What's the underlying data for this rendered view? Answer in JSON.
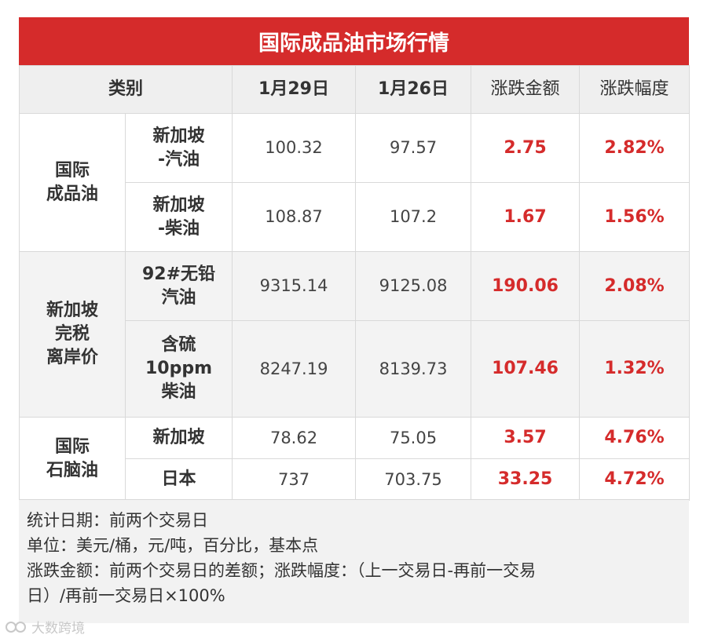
{
  "title": "国际成品油市场行情",
  "header": {
    "category": "类别",
    "date1": "1月29日",
    "date2": "1月26日",
    "change_amount": "涨跌金额",
    "change_pct": "涨跌幅度"
  },
  "groups": [
    {
      "label_lines": [
        "国际",
        "成品油"
      ],
      "rows": [
        {
          "item_lines": [
            "新加坡",
            "-汽油"
          ],
          "v1": "100.32",
          "v2": "97.57",
          "chg": "2.75",
          "pct": "2.82%"
        },
        {
          "item_lines": [
            "新加坡",
            "-柴油"
          ],
          "v1": "108.87",
          "v2": "107.2",
          "chg": "1.67",
          "pct": "1.56%"
        }
      ]
    },
    {
      "label_lines": [
        "新加坡",
        "完税",
        "离岸价"
      ],
      "rows": [
        {
          "item_lines": [
            "92#无铅",
            "汽油"
          ],
          "v1": "9315.14",
          "v2": "9125.08",
          "chg": "190.06",
          "pct": "2.08%"
        },
        {
          "item_lines": [
            "含硫",
            "10ppm",
            "柴油"
          ],
          "v1": "8247.19",
          "v2": "8139.73",
          "chg": "107.46",
          "pct": "1.32%"
        }
      ]
    },
    {
      "label_lines": [
        "国际",
        "石脑油"
      ],
      "rows": [
        {
          "item_lines": [
            "新加坡"
          ],
          "v1": "78.62",
          "v2": "75.05",
          "chg": "3.57",
          "pct": "4.76%"
        },
        {
          "item_lines": [
            "日本"
          ],
          "v1": "737",
          "v2": "703.75",
          "chg": "33.25",
          "pct": "4.72%"
        }
      ]
    }
  ],
  "notes": [
    "统计日期：前两个交易日",
    "单位：美元/桶，元/吨，百分比，基本点",
    "涨跌金额：前两个交易日的差额；涨跌幅度：（上一交易日-再前一交易",
    "日）/再前一交易日×100%"
  ],
  "watermark": "大数跨境",
  "colors": {
    "accent": "#d52b2b",
    "header_bg": "#efefef",
    "alt_bg": "#f3f3f3"
  }
}
